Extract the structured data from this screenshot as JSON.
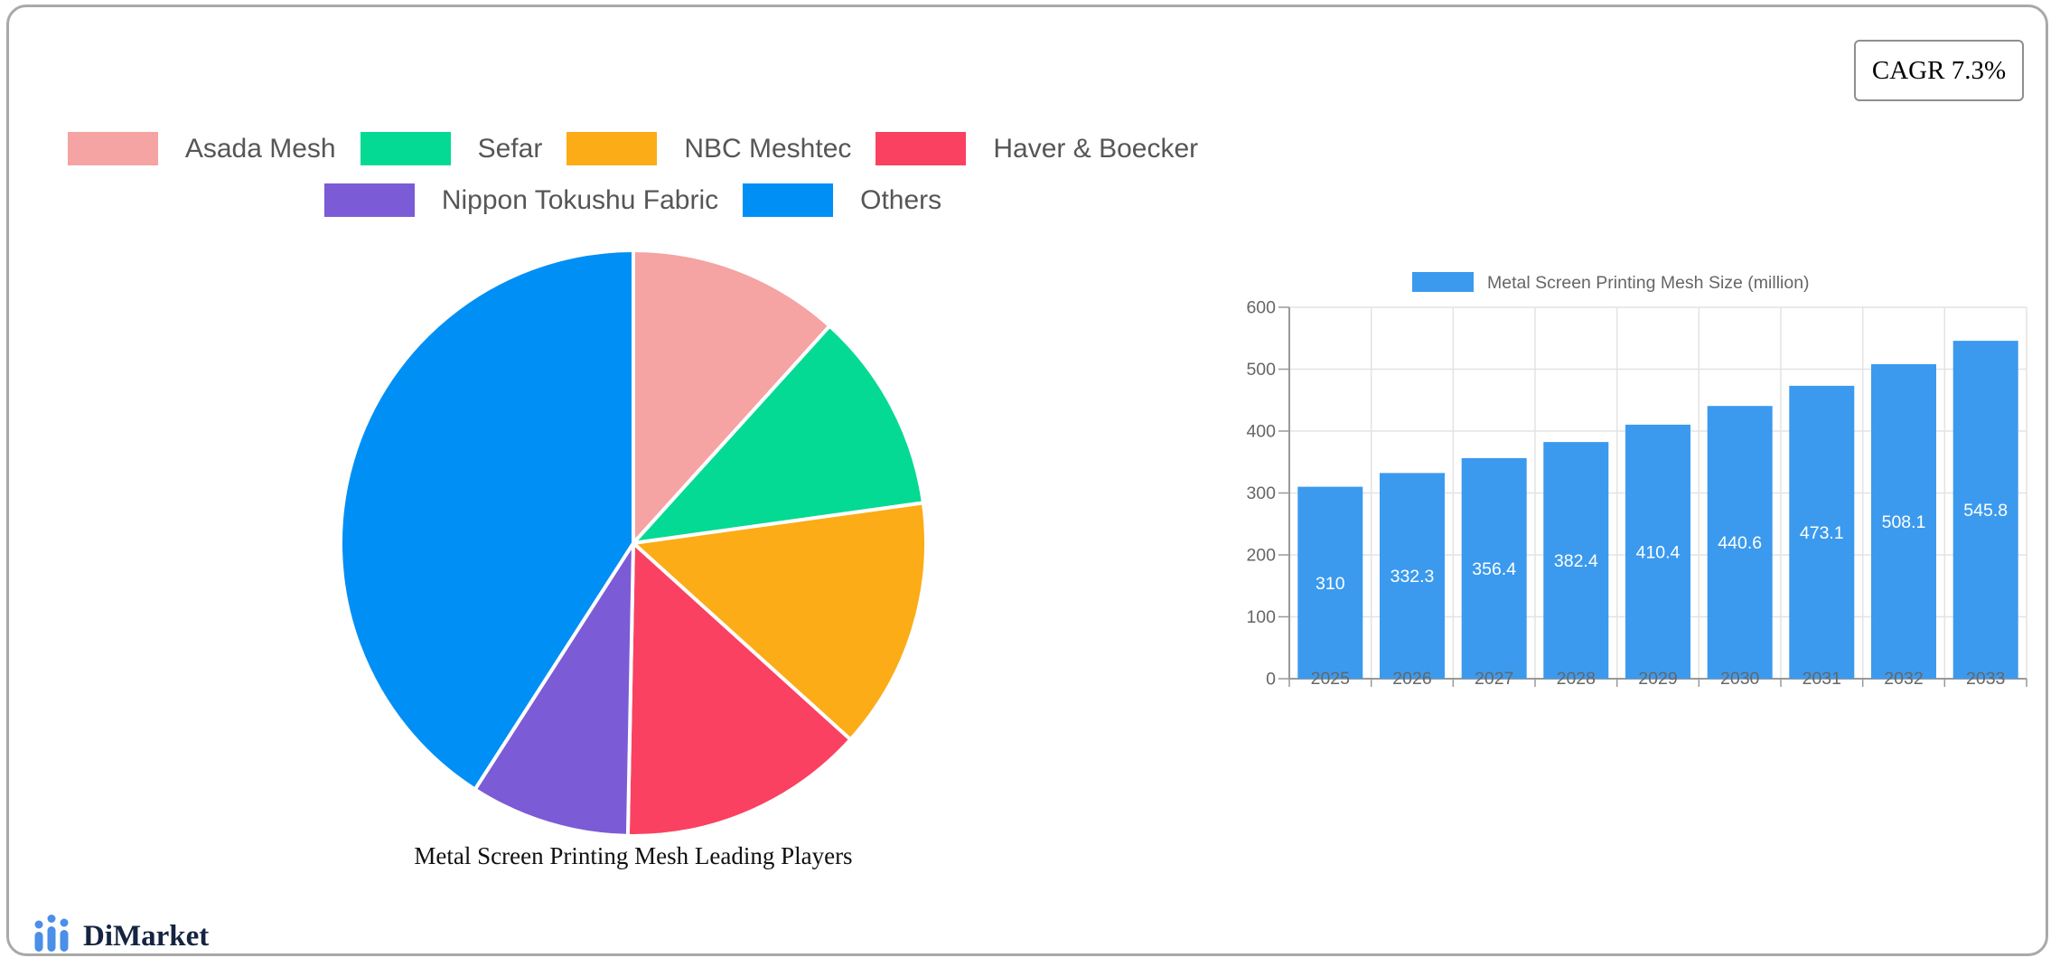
{
  "annotations": {
    "cagr": "CAGR 7.3%"
  },
  "branding": {
    "name": "DiMarket",
    "icon": "bar-chart-logo-icon",
    "icon_color": "#4a8fe8",
    "text_color": "#152440"
  },
  "colors": {
    "card_border": "#a9a9a9",
    "grid_line": "#e3e3e3",
    "axis_line": "#999999",
    "axis_text": "#666666",
    "legend_text": "#565656",
    "value_label_text": "#ffffff"
  },
  "chart_data": [
    {
      "type": "pie",
      "title": "Metal Screen Printing Mesh Leading Players",
      "labels": [
        "Asada Mesh",
        "Sefar",
        "NBC Meshtec",
        "Haver & Boecker",
        "Nippon Tokushu Fabric",
        "Others"
      ],
      "values_pct": [
        11.7,
        11.1,
        13.9,
        13.6,
        8.8,
        40.9
      ],
      "colors": [
        "#F5A3A3",
        "#04DA93",
        "#FBAC17",
        "#FA4161",
        "#7B5BD6",
        "#008FF5"
      ],
      "start_angle_deg": 0,
      "direction": "clockwise",
      "slice_border_color": "#ffffff",
      "legend_position": "top"
    },
    {
      "type": "bar",
      "legend_label": "Metal Screen Printing Mesh Size (million)",
      "categories": [
        "2025",
        "2026",
        "2027",
        "2028",
        "2029",
        "2030",
        "2031",
        "2032",
        "2033"
      ],
      "values": [
        310,
        332.3,
        356.4,
        382.4,
        410.4,
        440.6,
        473.1,
        508.1,
        545.8
      ],
      "bar_color": "#3B9AEE",
      "ylim": [
        0,
        600
      ],
      "ytick_step": 100,
      "grid": true,
      "value_label_style": "inside-center-white"
    }
  ]
}
